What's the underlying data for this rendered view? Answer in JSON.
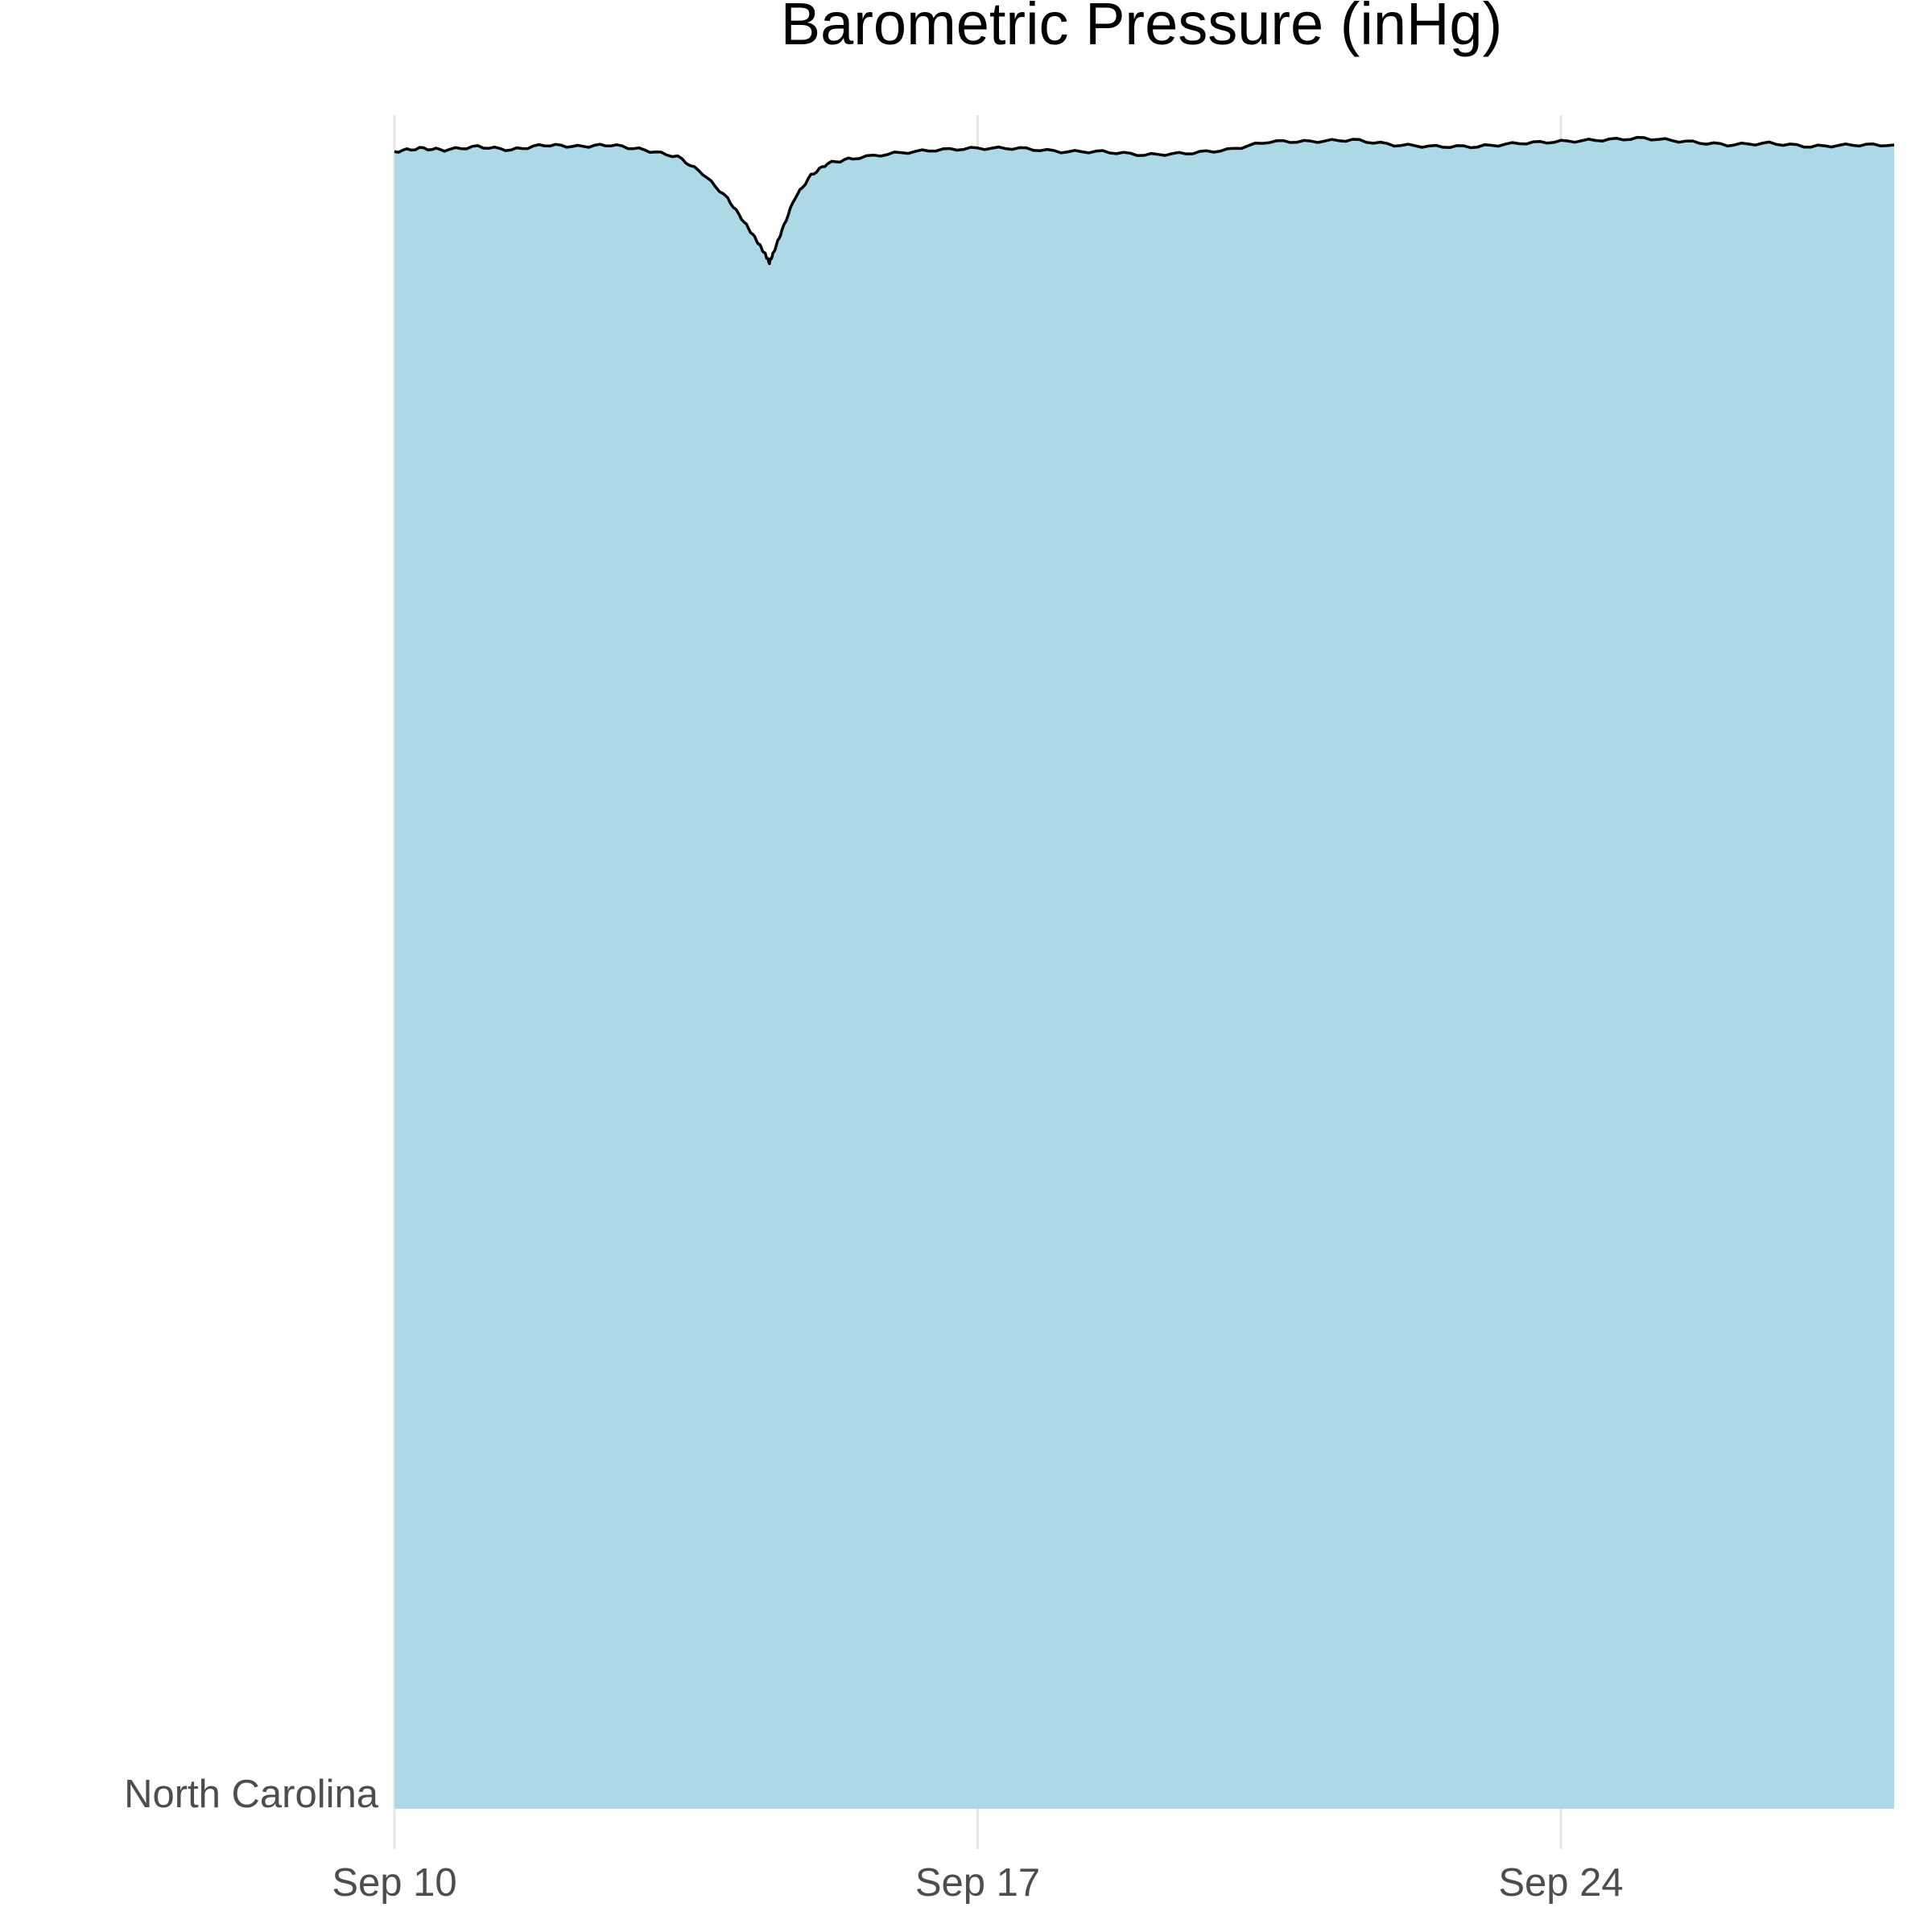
{
  "chart_data": {
    "type": "area",
    "title": "Barometric Pressure (inHg)",
    "xlabel": "",
    "ylabel": "",
    "y_category_labels": [
      "North Carolina"
    ],
    "x_tick_labels": [
      "Sep 10",
      "Sep 17",
      "Sep 24"
    ],
    "x_tick_days": [
      10,
      17,
      24
    ],
    "xlim_days": [
      10,
      28
    ],
    "grid": "vertical major lines at tick marks",
    "colors": {
      "fill": "#add8e6",
      "line": "#000000",
      "grid": "#e5e5e5",
      "tick_text": "#4d4d4d",
      "title": "#000000"
    },
    "series": [
      {
        "x_days": [
          10,
          10.3,
          10.6,
          11.0,
          11.4,
          11.8,
          12.2,
          12.6,
          13.0,
          13.4,
          13.7,
          14.0,
          14.2,
          14.35,
          14.45,
          14.5,
          14.55,
          14.65,
          14.8,
          15.0,
          15.2,
          15.5,
          16.0,
          16.5,
          17.0,
          17.5,
          18.0,
          18.5,
          19.0,
          19.5,
          20.0,
          20.5,
          21.0,
          21.5,
          22.0,
          22.5,
          23.0,
          23.5,
          24.0,
          24.5,
          25.0,
          25.5,
          26.0,
          26.5,
          27.0,
          27.5,
          28.0
        ],
        "relative_values": [
          0.985,
          0.987,
          0.986,
          0.988,
          0.986,
          0.989,
          0.988,
          0.989,
          0.986,
          0.982,
          0.972,
          0.957,
          0.943,
          0.932,
          0.924,
          0.919,
          0.925,
          0.938,
          0.957,
          0.971,
          0.978,
          0.981,
          0.984,
          0.986,
          0.987,
          0.987,
          0.985,
          0.985,
          0.983,
          0.984,
          0.986,
          0.991,
          0.991,
          0.992,
          0.989,
          0.988,
          0.988,
          0.99,
          0.991,
          0.992,
          0.993,
          0.991,
          0.989,
          0.99,
          0.988,
          0.989,
          0.989
        ]
      }
    ]
  }
}
